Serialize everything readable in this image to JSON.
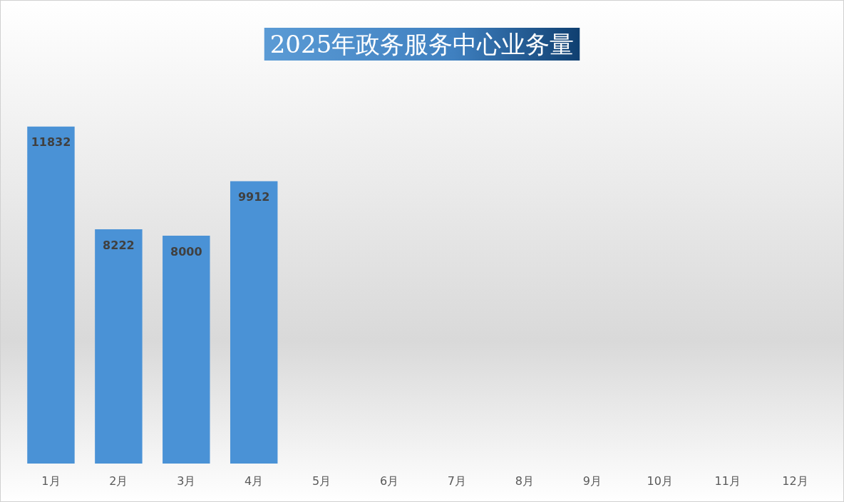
{
  "chart_data": {
    "type": "bar",
    "title": "2025年政务服务中心业务量",
    "categories": [
      "1月",
      "2月",
      "3月",
      "4月",
      "5月",
      "6月",
      "7月",
      "8月",
      "9月",
      "10月",
      "11月",
      "12月"
    ],
    "values": [
      11832,
      8222,
      8000,
      9912,
      null,
      null,
      null,
      null,
      null,
      null,
      null,
      null
    ],
    "color": "#4a92d6",
    "data_labels": true
  }
}
